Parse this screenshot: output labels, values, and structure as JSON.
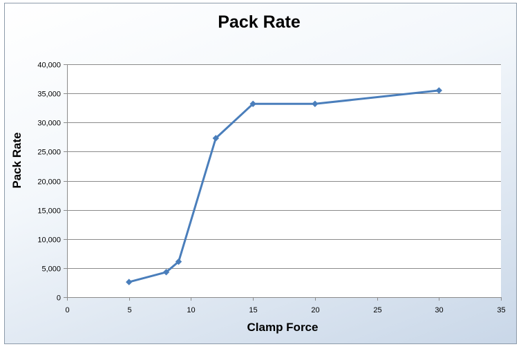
{
  "chart_data": {
    "type": "scatter",
    "title": "Pack Rate",
    "xlabel": "Clamp Force",
    "ylabel": "Pack Rate",
    "xlim": [
      0,
      35
    ],
    "ylim": [
      0,
      40000
    ],
    "x_ticks": [
      0,
      5,
      10,
      15,
      20,
      25,
      30,
      35
    ],
    "y_ticks": [
      0,
      5000,
      10000,
      15000,
      20000,
      25000,
      30000,
      35000,
      40000
    ],
    "x_tick_labels": [
      "0",
      "5",
      "10",
      "15",
      "20",
      "25",
      "30",
      "35"
    ],
    "y_tick_labels": [
      "0",
      "5,000",
      "10,000",
      "15,000",
      "20,000",
      "25,000",
      "30,000",
      "35,000",
      "40,000"
    ],
    "grid": "horizontal major gridlines",
    "legend": "none",
    "marker": "diamond",
    "line_style": "straight lines with markers",
    "series_color": "#4a7ebb",
    "series": [
      {
        "points": [
          {
            "x": 5,
            "y": 2600
          },
          {
            "x": 8,
            "y": 4300
          },
          {
            "x": 9,
            "y": 6100
          },
          {
            "x": 12,
            "y": 27300
          },
          {
            "x": 15,
            "y": 33200
          },
          {
            "x": 20,
            "y": 33200
          },
          {
            "x": 30,
            "y": 35500
          }
        ]
      }
    ]
  }
}
